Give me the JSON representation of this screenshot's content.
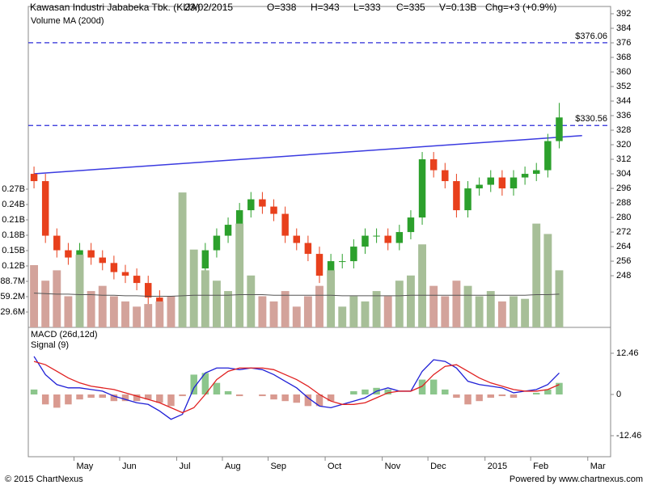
{
  "chart_data": [
    {
      "type": "candlestick",
      "title": "Kawasan Industri Jababeka Tbk. (KIJA)",
      "header_fields": [
        "23/02/2015",
        "O=338",
        "H=343",
        "L=333",
        "C=335",
        "V=0.13B",
        "Chg=+3 (+0.9%)"
      ],
      "categories": [
        null,
        null,
        null,
        null,
        "May",
        null,
        null,
        null,
        "Jun",
        null,
        null,
        null,
        null,
        "Jul",
        null,
        null,
        null,
        "Aug",
        null,
        null,
        null,
        "Sep",
        null,
        null,
        null,
        null,
        "Oct",
        null,
        null,
        null,
        null,
        "Nov",
        null,
        null,
        null,
        "Dec",
        null,
        null,
        null,
        null,
        "2015",
        null,
        null,
        null,
        "Feb",
        null,
        null,
        null,
        null,
        "Mar",
        null
      ],
      "open": [
        304,
        300,
        270,
        262,
        258,
        262,
        258,
        255,
        250,
        248,
        244,
        236,
        230,
        228,
        240,
        252,
        262,
        270,
        276,
        284,
        290,
        286,
        282,
        270,
        266,
        260,
        248,
        256,
        256,
        264,
        270,
        270,
        266,
        272,
        280,
        312,
        306,
        300,
        284,
        296,
        298,
        302,
        296,
        302,
        304,
        306,
        322,
        null,
        null,
        null,
        null
      ],
      "high": [
        308,
        304,
        274,
        266,
        266,
        266,
        262,
        259,
        254,
        252,
        248,
        240,
        234,
        244,
        256,
        266,
        274,
        280,
        288,
        294,
        294,
        290,
        286,
        274,
        270,
        264,
        260,
        260,
        268,
        274,
        274,
        274,
        276,
        284,
        316,
        316,
        310,
        304,
        300,
        302,
        306,
        306,
        306,
        308,
        310,
        326,
        343,
        null,
        null,
        null,
        null
      ],
      "low": [
        296,
        266,
        258,
        254,
        254,
        254,
        251,
        246,
        244,
        240,
        232,
        226,
        224,
        224,
        236,
        248,
        258,
        266,
        272,
        280,
        282,
        278,
        266,
        262,
        256,
        244,
        244,
        252,
        252,
        260,
        266,
        262,
        262,
        268,
        276,
        302,
        296,
        280,
        280,
        292,
        294,
        292,
        292,
        298,
        300,
        302,
        318,
        null,
        null,
        null,
        null
      ],
      "close": [
        300,
        270,
        262,
        258,
        262,
        258,
        255,
        250,
        248,
        244,
        236,
        230,
        228,
        240,
        252,
        262,
        270,
        276,
        284,
        290,
        286,
        282,
        270,
        266,
        260,
        248,
        256,
        256,
        264,
        270,
        270,
        266,
        272,
        280,
        312,
        306,
        300,
        284,
        296,
        298,
        302,
        296,
        302,
        304,
        306,
        322,
        335,
        null,
        null,
        null,
        null
      ],
      "up_color": "#2ca02c",
      "down_color": "#e8401c",
      "ylim": [
        219.6,
        396
      ],
      "yticks": [
        248,
        256,
        264,
        272,
        280,
        288,
        296,
        304,
        312,
        320,
        328,
        336,
        344,
        352,
        360,
        368,
        376,
        384,
        392
      ],
      "hlines": [
        {
          "value": 376.06,
          "label": "$376.06"
        },
        {
          "value": 330.56,
          "label": "$330.56"
        }
      ],
      "hline_color": "#2b2bd9",
      "trendline": {
        "from": [
          0,
          304
        ],
        "to": [
          48,
          325
        ],
        "color": "#3a3ae0"
      }
    },
    {
      "type": "bar",
      "values": [
        120000000,
        90000000,
        110000000,
        60000000,
        140000000,
        70000000,
        80000000,
        60000000,
        50000000,
        40000000,
        45000000,
        50000000,
        60000000,
        260000000,
        150000000,
        110000000,
        90000000,
        70000000,
        200000000,
        100000000,
        60000000,
        50000000,
        70000000,
        40000000,
        60000000,
        80000000,
        110000000,
        40000000,
        60000000,
        50000000,
        70000000,
        60000000,
        90000000,
        100000000,
        160000000,
        80000000,
        60000000,
        90000000,
        80000000,
        60000000,
        70000000,
        50000000,
        60000000,
        55000000,
        200000000,
        180000000,
        110000000,
        null,
        null,
        null,
        null
      ],
      "up_color": "#a7bf98",
      "down_color": "#d3a39b",
      "series": [
        {
          "name": "Volume MA (200d)",
          "color": "#555555",
          "values": [
            66000000,
            65000000,
            64000000,
            64000000,
            63000000,
            63000000,
            62000000,
            62000000,
            61000000,
            61000000,
            60000000,
            60000000,
            60000000,
            61000000,
            62000000,
            62000000,
            62000000,
            62000000,
            63000000,
            63000000,
            63000000,
            62000000,
            62000000,
            62000000,
            62000000,
            62000000,
            62000000,
            61000000,
            61000000,
            61000000,
            61000000,
            61000000,
            61000000,
            62000000,
            62000000,
            62000000,
            62000000,
            62000000,
            62000000,
            62000000,
            62000000,
            62000000,
            62000000,
            62000000,
            63000000,
            63000000,
            64000000,
            null,
            null,
            null,
            null
          ]
        }
      ],
      "ylim": [
        0,
        618500000
      ],
      "yticks": [
        {
          "value": 29600000,
          "label": "29.6M"
        },
        {
          "value": 59200000,
          "label": "59.2M"
        },
        {
          "value": 88700000,
          "label": "88.7M"
        },
        {
          "value": 118400000,
          "label": "0.12B"
        },
        {
          "value": 148000000,
          "label": "0.15B"
        },
        {
          "value": 177600000,
          "label": "0.18B"
        },
        {
          "value": 207200000,
          "label": "0.21B"
        },
        {
          "value": 236800000,
          "label": "0.24B"
        },
        {
          "value": 266400000,
          "label": "0.27B"
        }
      ]
    },
    {
      "type": "line",
      "series": [
        {
          "name": "MACD (26d,12d)",
          "color": "#1f1fd6",
          "values": [
            11.5,
            6,
            3,
            2,
            2,
            1.5,
            1,
            -0.5,
            -1.5,
            -2.5,
            -3,
            -5,
            -7.5,
            -6,
            2,
            6.5,
            8,
            8,
            7.5,
            8,
            7.5,
            6,
            4,
            2,
            -1,
            -3.5,
            -4,
            -3,
            -2,
            -1,
            1,
            2,
            1,
            1,
            7,
            10.5,
            10,
            8,
            4,
            3,
            2.5,
            2,
            0.5,
            1,
            1.5,
            3,
            6.5,
            null,
            null,
            null,
            null
          ]
        },
        {
          "name": "Signal (9)",
          "color": "#e02020",
          "values": [
            10,
            9,
            7,
            5,
            3.5,
            2.5,
            2,
            1.5,
            0.5,
            -0.5,
            -1.5,
            -2.5,
            -4,
            -5.5,
            -4,
            0,
            4.5,
            7,
            8,
            8,
            8,
            7.5,
            6,
            4.5,
            2.5,
            0,
            -2,
            -3,
            -3,
            -2.5,
            -1,
            0.5,
            1,
            1,
            2.5,
            6,
            8.5,
            9,
            7,
            5,
            3.5,
            2.5,
            1.5,
            1,
            1,
            1.5,
            3,
            null,
            null,
            null,
            null
          ]
        }
      ],
      "histogram": [
        1.5,
        -3,
        -4,
        -3,
        -1.5,
        -1,
        -1,
        -2,
        -2,
        -2,
        -1.5,
        -2.5,
        -3.5,
        -0.5,
        6,
        6.5,
        3.5,
        1,
        -0.5,
        0,
        -0.5,
        -1.5,
        -2,
        -2.5,
        -3.5,
        -3.5,
        -2,
        0,
        1,
        1.5,
        2,
        1.5,
        0,
        0,
        4.5,
        4.5,
        1.5,
        -1,
        -3,
        -2,
        -1,
        -0.5,
        -1,
        0,
        0.5,
        1.5,
        3.5,
        null,
        null,
        null,
        null
      ],
      "histogram_colors": {
        "positive": "#8cc68c",
        "negative": "#d99a90"
      },
      "ylim": [
        -18.81,
        20.28
      ],
      "yticks": [
        -12.46,
        0,
        12.46
      ]
    }
  ],
  "footer": {
    "left": "© 2015 ChartNexus",
    "right": "Powered by www.chartnexus.com"
  }
}
